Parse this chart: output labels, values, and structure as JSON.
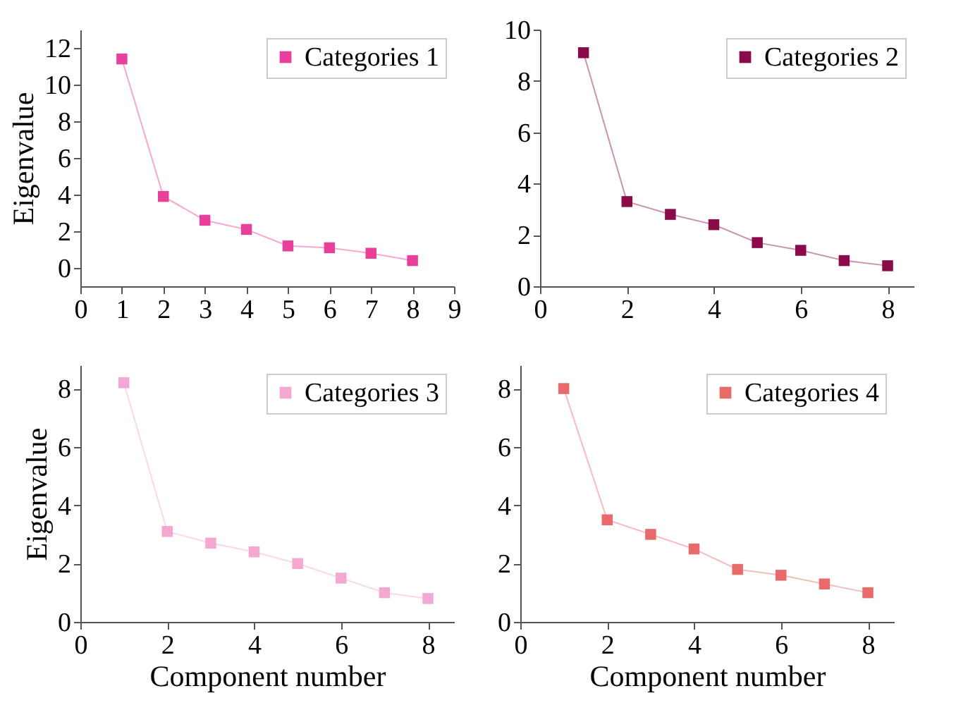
{
  "chart_data": [
    {
      "type": "line",
      "ylabel": "Eigenvalue",
      "x": [
        1,
        2,
        3,
        4,
        5,
        6,
        7,
        8
      ],
      "xlim": [
        0,
        9
      ],
      "xticks": [
        0,
        1,
        2,
        3,
        4,
        5,
        6,
        7,
        8,
        9
      ],
      "ylim": [
        -1,
        13
      ],
      "yticks": [
        0,
        2,
        4,
        6,
        8,
        10,
        12
      ],
      "marker": "square",
      "line_style": "solid",
      "legend": "top right",
      "grid": false,
      "series": [
        {
          "name": "Categories 1",
          "color": "#e8409a",
          "values": [
            11.4,
            3.9,
            2.6,
            2.1,
            1.2,
            1.1,
            0.8,
            0.4
          ]
        }
      ]
    },
    {
      "type": "line",
      "x": [
        1,
        2,
        3,
        4,
        5,
        6,
        7,
        8
      ],
      "xlim": [
        0,
        8.6
      ],
      "xticks": [
        0,
        2,
        4,
        6,
        8
      ],
      "ylim": [
        0,
        10
      ],
      "yticks": [
        0,
        2,
        4,
        6,
        8,
        10
      ],
      "marker": "square",
      "line_style": "solid",
      "legend": "top right",
      "grid": false,
      "series": [
        {
          "name": "Categories 2",
          "color": "#8b0a4a",
          "values": [
            9.1,
            3.3,
            2.8,
            2.4,
            1.7,
            1.4,
            1.0,
            0.8
          ]
        }
      ]
    },
    {
      "type": "line",
      "ylabel": "Eigenvalue",
      "xlabel": "Component number",
      "x": [
        1,
        2,
        3,
        4,
        5,
        6,
        7,
        8
      ],
      "xlim": [
        0,
        8.6
      ],
      "xticks": [
        0,
        2,
        4,
        6,
        8
      ],
      "ylim": [
        0,
        8.8
      ],
      "yticks": [
        0,
        2,
        4,
        6,
        8
      ],
      "marker": "square",
      "line_style": "solid",
      "legend": "top right",
      "grid": false,
      "series": [
        {
          "name": "Categories 3",
          "color": "#f2a8d0",
          "values": [
            8.2,
            3.1,
            2.7,
            2.4,
            2.0,
            1.5,
            1.0,
            0.8
          ]
        }
      ]
    },
    {
      "type": "line",
      "xlabel": "Component number",
      "x": [
        1,
        2,
        3,
        4,
        5,
        6,
        7,
        8
      ],
      "xlim": [
        0,
        8.6
      ],
      "xticks": [
        0,
        2,
        4,
        6,
        8
      ],
      "ylim": [
        0,
        8.8
      ],
      "yticks": [
        0,
        2,
        4,
        6,
        8
      ],
      "marker": "square",
      "line_style": "solid",
      "legend": "top right",
      "grid": false,
      "series": [
        {
          "name": "Categories 4",
          "color": "#e86a6a",
          "values": [
            8.0,
            3.5,
            3.0,
            2.5,
            1.8,
            1.6,
            1.3,
            1.0
          ]
        }
      ]
    }
  ]
}
